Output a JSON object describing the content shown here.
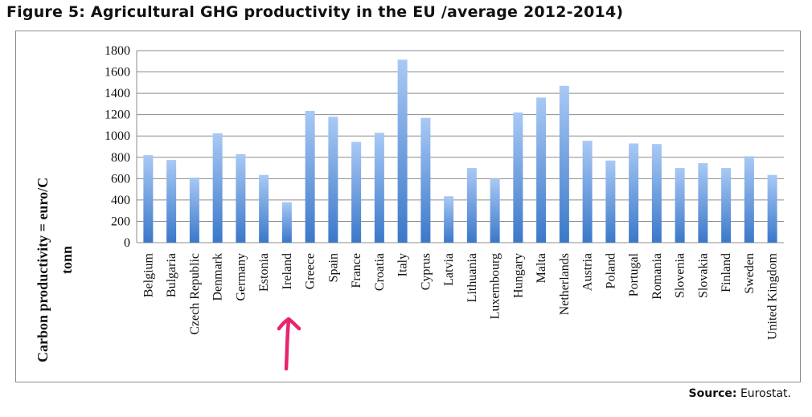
{
  "figure": {
    "title": "Figure 5:  Agricultural GHG productivity in the EU /average 2012-2014)",
    "source_label": "Source:",
    "source_text": " Eurostat."
  },
  "chart_data": {
    "type": "bar",
    "categories": [
      "Belgium",
      "Bulgaria",
      "Czech Republic",
      "Denmark",
      "Germany",
      "Estonia",
      "Ireland",
      "Greece",
      "Spain",
      "France",
      "Croatia",
      "Italy",
      "Cyprus",
      "Latvia",
      "Lithuania",
      "Luxembourg",
      "Hungary",
      "Malta",
      "Netherlands",
      "Austria",
      "Poland",
      "Portugal",
      "Romania",
      "Slovenia",
      "Slovakia",
      "Finland",
      "Sweden",
      "United Kingdom"
    ],
    "values": [
      820,
      775,
      610,
      1025,
      830,
      635,
      380,
      1235,
      1180,
      945,
      1030,
      1715,
      1170,
      435,
      700,
      600,
      1220,
      1360,
      1470,
      955,
      770,
      930,
      925,
      700,
      745,
      700,
      810,
      635
    ],
    "ylabel_line1": "Carbon productivity = euro/C",
    "ylabel_line2": "tonn",
    "ylim": [
      0,
      1800
    ],
    "yticks": [
      0,
      200,
      400,
      600,
      800,
      1000,
      1200,
      1400,
      1600,
      1800
    ],
    "grid": true,
    "legend": "none",
    "colors": {
      "bar_top": "#a9c9f5",
      "bar_bottom": "#3a78c9",
      "grid": "#8c8c8c",
      "annotation_arrow": "#e8246f"
    },
    "annotation": {
      "type": "arrow",
      "points_to": "Ireland",
      "icon": "up-arrow-icon"
    }
  }
}
